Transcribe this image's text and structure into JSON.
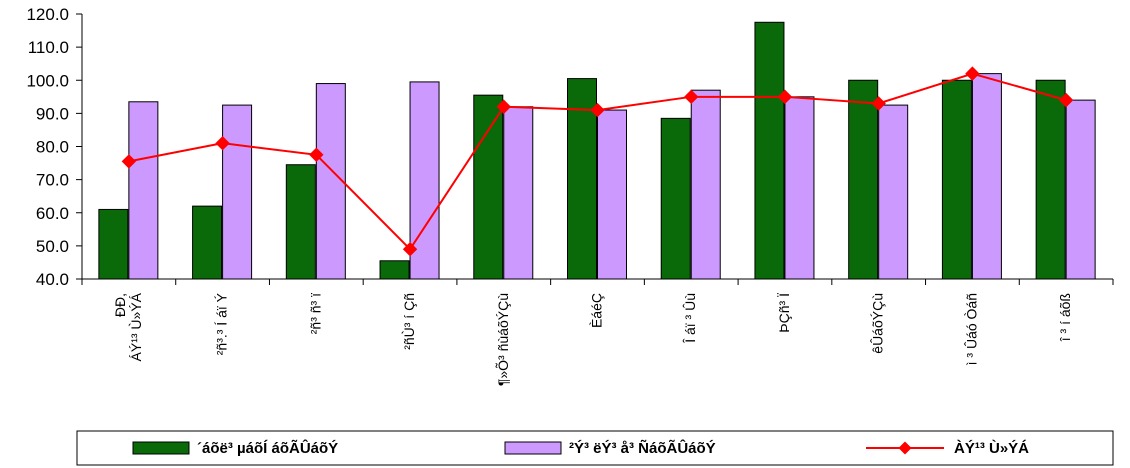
{
  "chart_data": {
    "type": "bar",
    "categories": [
      [
        "ÐÐ,",
        "ÁÝ¹³ Ù»ÝÁ"
      ],
      [
        "²ñ³.³ Í áï Ý"
      ],
      [
        "²ñ³ ñ³ ï"
      ],
      [
        "²ñÙ³ í Çñ"
      ],
      [
        "¶»Õ³ ñùáõÝÇù"
      ],
      [
        "ÈáéÇ"
      ],
      [
        "Î áï ³ Ûù"
      ],
      [
        "ÞÇñ³ Ï"
      ],
      [
        "êÛáõÝÇù"
      ],
      [
        "ì ³ Ûáó Òáñ"
      ],
      [
        "î ³ í áõß"
      ]
    ],
    "series": [
      {
        "name": "´áõë³ µáõÍ áõÃÛáõÝ",
        "type": "bar",
        "color": "#0a6a0a",
        "values": [
          61.0,
          62.0,
          74.5,
          45.5,
          95.5,
          100.5,
          88.5,
          117.5,
          100.0,
          100.0,
          100.0
        ]
      },
      {
        "name": "²Ý³ ëÝ³ å³ ÑáõÃÛáõÝ",
        "type": "bar",
        "color": "#cc99ff",
        "values": [
          93.5,
          92.5,
          99.0,
          99.5,
          92.0,
          91.0,
          97.0,
          95.0,
          92.5,
          102.0,
          94.0
        ]
      },
      {
        "name": "ÀÝ¹³ Ù»ÝÁ",
        "type": "line",
        "color": "#ff0000",
        "values": [
          75.5,
          81.0,
          77.5,
          49.0,
          92.0,
          91.0,
          95.0,
          95.0,
          93.0,
          102.0,
          94.0
        ]
      }
    ],
    "ylim": [
      40,
      120
    ],
    "yticks": [
      "40.0",
      "50.0",
      "60.0",
      "70.0",
      "80.0",
      "90.0",
      "100.0",
      "110.0",
      "120.0"
    ],
    "xlabel": "",
    "ylabel": "",
    "grid": false,
    "legend_position": "bottom"
  }
}
